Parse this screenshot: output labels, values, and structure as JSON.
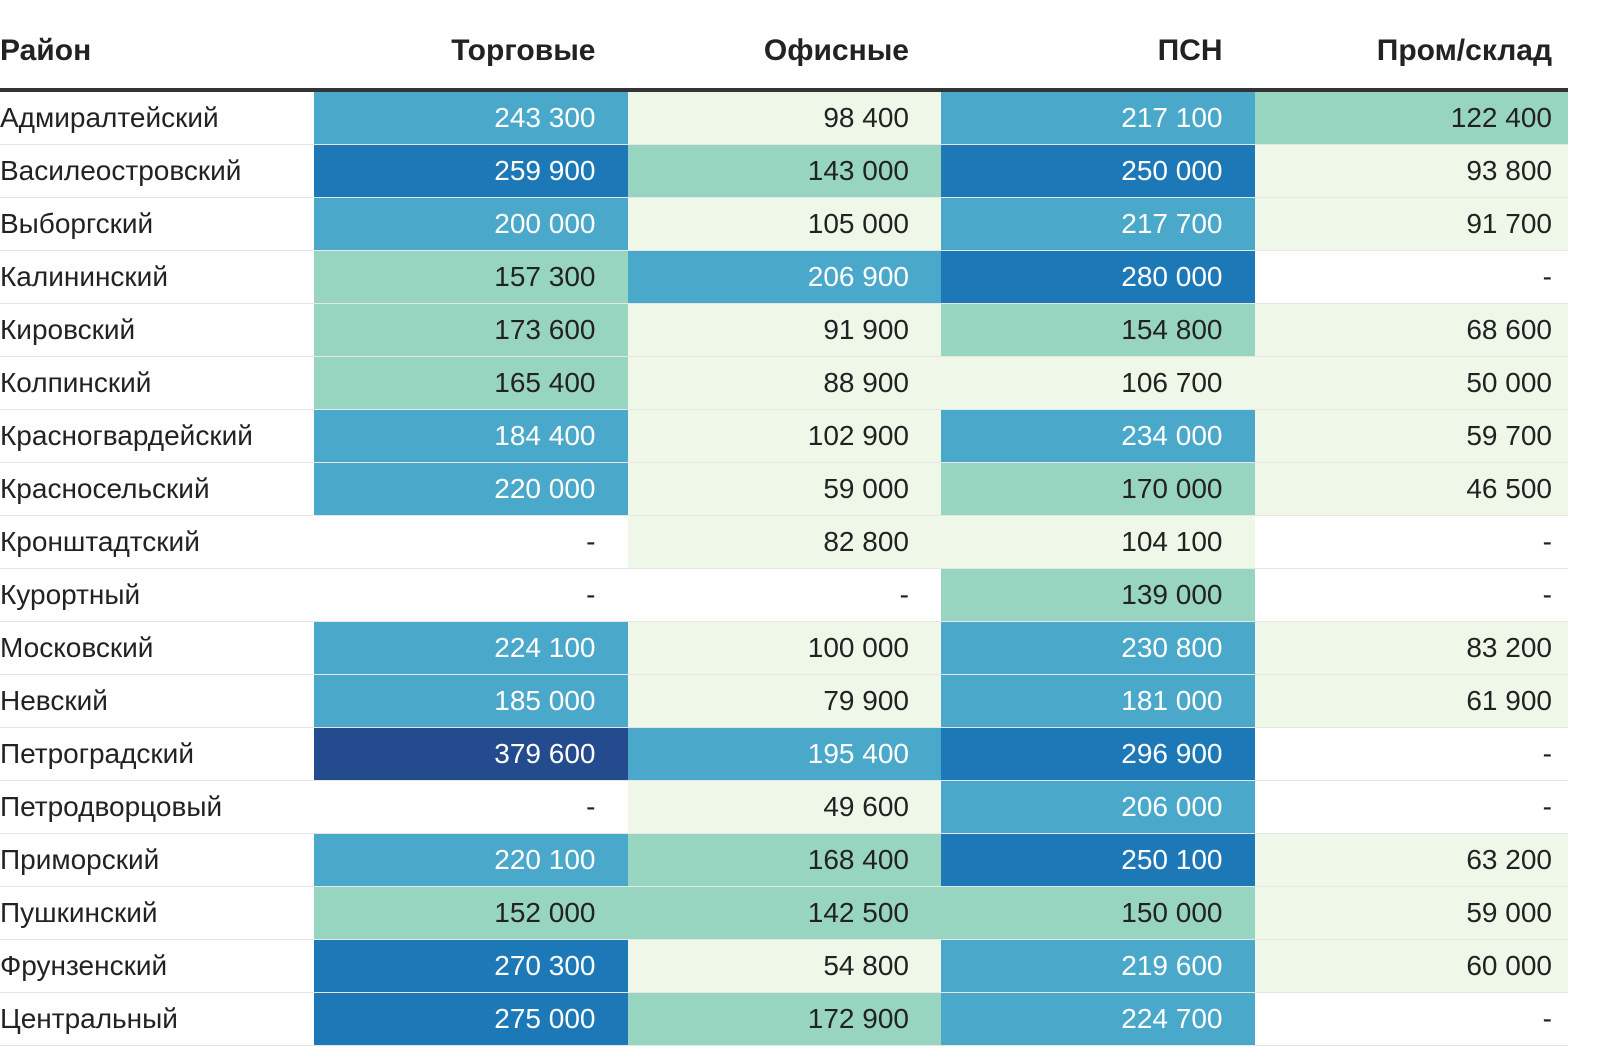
{
  "colors": {
    "empty": "#ffffff",
    "low": "#eff8e8",
    "mid": "#98d5c1",
    "high": "#4aa8cb",
    "higher": "#1d78b7",
    "top": "#244b8e",
    "text_dark": "#222222",
    "text_light": "#ffffff"
  },
  "chart_data": {
    "type": "table",
    "columns": [
      "Район",
      "Торговые",
      "Офисные",
      "ПСН",
      "Пром/склад"
    ],
    "rows": [
      {
        "name": "Адмиралтейский",
        "values": [
          "243 300",
          "98 400",
          "217 100",
          "122 400"
        ],
        "levels": [
          "high",
          "low",
          "high",
          "mid"
        ]
      },
      {
        "name": "Василеостровский",
        "values": [
          "259 900",
          "143 000",
          "250 000",
          "93 800"
        ],
        "levels": [
          "higher",
          "mid",
          "higher",
          "low"
        ]
      },
      {
        "name": "Выборгский",
        "values": [
          "200 000",
          "105 000",
          "217 700",
          "91 700"
        ],
        "levels": [
          "high",
          "low",
          "high",
          "low"
        ]
      },
      {
        "name": "Калининский",
        "values": [
          "157 300",
          "206 900",
          "280 000",
          "-"
        ],
        "levels": [
          "mid",
          "high",
          "higher",
          "empty"
        ]
      },
      {
        "name": "Кировский",
        "values": [
          "173 600",
          "91 900",
          "154 800",
          "68 600"
        ],
        "levels": [
          "mid",
          "low",
          "mid",
          "low"
        ]
      },
      {
        "name": "Колпинский",
        "values": [
          "165 400",
          "88 900",
          "106 700",
          "50 000"
        ],
        "levels": [
          "mid",
          "low",
          "low",
          "low"
        ]
      },
      {
        "name": "Красногвардейский",
        "values": [
          "184 400",
          "102 900",
          "234 000",
          "59 700"
        ],
        "levels": [
          "high",
          "low",
          "high",
          "low"
        ]
      },
      {
        "name": "Красносельский",
        "values": [
          "220 000",
          "59 000",
          "170 000",
          "46 500"
        ],
        "levels": [
          "high",
          "low",
          "mid",
          "low"
        ]
      },
      {
        "name": "Кронштадтский",
        "values": [
          "-",
          "82 800",
          "104 100",
          "-"
        ],
        "levels": [
          "empty",
          "low",
          "low",
          "empty"
        ]
      },
      {
        "name": "Курортный",
        "values": [
          "-",
          "-",
          "139 000",
          "-"
        ],
        "levels": [
          "empty",
          "empty",
          "mid",
          "empty"
        ]
      },
      {
        "name": "Московский",
        "values": [
          "224 100",
          "100 000",
          "230 800",
          "83 200"
        ],
        "levels": [
          "high",
          "low",
          "high",
          "low"
        ]
      },
      {
        "name": "Невский",
        "values": [
          "185 000",
          "79 900",
          "181 000",
          "61 900"
        ],
        "levels": [
          "high",
          "low",
          "high",
          "low"
        ]
      },
      {
        "name": "Петроградский",
        "values": [
          "379 600",
          "195 400",
          "296 900",
          "-"
        ],
        "levels": [
          "top",
          "high",
          "higher",
          "empty"
        ]
      },
      {
        "name": "Петродворцовый",
        "values": [
          "-",
          "49 600",
          "206 000",
          "-"
        ],
        "levels": [
          "empty",
          "low",
          "high",
          "empty"
        ]
      },
      {
        "name": "Приморский",
        "values": [
          "220 100",
          "168 400",
          "250 100",
          "63 200"
        ],
        "levels": [
          "high",
          "mid",
          "higher",
          "low"
        ]
      },
      {
        "name": "Пушкинский",
        "values": [
          "152 000",
          "142 500",
          "150 000",
          "59 000"
        ],
        "levels": [
          "mid",
          "mid",
          "mid",
          "low"
        ]
      },
      {
        "name": "Фрунзенский",
        "values": [
          "270 300",
          "54 800",
          "219 600",
          "60 000"
        ],
        "levels": [
          "higher",
          "low",
          "high",
          "low"
        ]
      },
      {
        "name": "Центральный",
        "values": [
          "275 000",
          "172 900",
          "224 700",
          "-"
        ],
        "levels": [
          "higher",
          "mid",
          "high",
          "empty"
        ]
      }
    ]
  }
}
